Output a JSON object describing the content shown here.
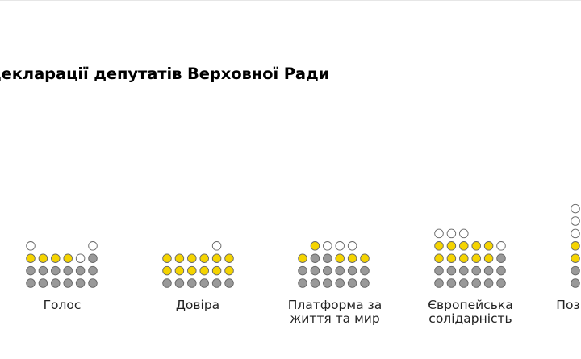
{
  "chart_data": {
    "type": "dot-matrix",
    "title": "декларації депутатів Верховної Ради",
    "colors": {
      "grey": "#999999",
      "yellow": "#f5d400",
      "white": "#ffffff",
      "outline": "#666666"
    },
    "columns_per_group": 6,
    "stack_order_bottom_to_top": [
      "grey",
      "yellow",
      "white"
    ],
    "groups": [
      {
        "label": "Голос",
        "columns": [
          {
            "grey": 2,
            "yellow": 1,
            "white": 1
          },
          {
            "grey": 2,
            "yellow": 1,
            "white": 0
          },
          {
            "grey": 2,
            "yellow": 1,
            "white": 0
          },
          {
            "grey": 2,
            "yellow": 1,
            "white": 0
          },
          {
            "grey": 2,
            "yellow": 0,
            "white": 1
          },
          {
            "grey": 3,
            "yellow": 0,
            "white": 1
          }
        ]
      },
      {
        "label": "Довіра",
        "columns": [
          {
            "grey": 1,
            "yellow": 2,
            "white": 0
          },
          {
            "grey": 1,
            "yellow": 2,
            "white": 0
          },
          {
            "grey": 1,
            "yellow": 2,
            "white": 0
          },
          {
            "grey": 1,
            "yellow": 2,
            "white": 0
          },
          {
            "grey": 1,
            "yellow": 2,
            "white": 1
          },
          {
            "grey": 1,
            "yellow": 2,
            "white": 0
          }
        ]
      },
      {
        "label": "Платформа за життя та мир",
        "label_lines": [
          "Платформа за",
          "життя та мир"
        ],
        "columns": [
          {
            "grey": 2,
            "yellow": 1,
            "white": 0
          },
          {
            "grey": 3,
            "yellow": 1,
            "white": 0
          },
          {
            "grey": 3,
            "yellow": 0,
            "white": 1
          },
          {
            "grey": 2,
            "yellow": 1,
            "white": 1
          },
          {
            "grey": 2,
            "yellow": 1,
            "white": 1
          },
          {
            "grey": 2,
            "yellow": 1,
            "white": 0
          }
        ]
      },
      {
        "label": "Європейська солідарність",
        "label_lines": [
          "Європейська",
          "солідарність"
        ],
        "columns": [
          {
            "grey": 2,
            "yellow": 2,
            "white": 1
          },
          {
            "grey": 2,
            "yellow": 2,
            "white": 1
          },
          {
            "grey": 2,
            "yellow": 2,
            "white": 1
          },
          {
            "grey": 2,
            "yellow": 2,
            "white": 0
          },
          {
            "grey": 2,
            "yellow": 2,
            "white": 0
          },
          {
            "grey": 3,
            "yellow": 0,
            "white": 1
          }
        ]
      },
      {
        "label": "Поз",
        "columns": [
          {
            "grey": 2,
            "yellow": 2,
            "white": 3
          }
        ]
      }
    ]
  }
}
